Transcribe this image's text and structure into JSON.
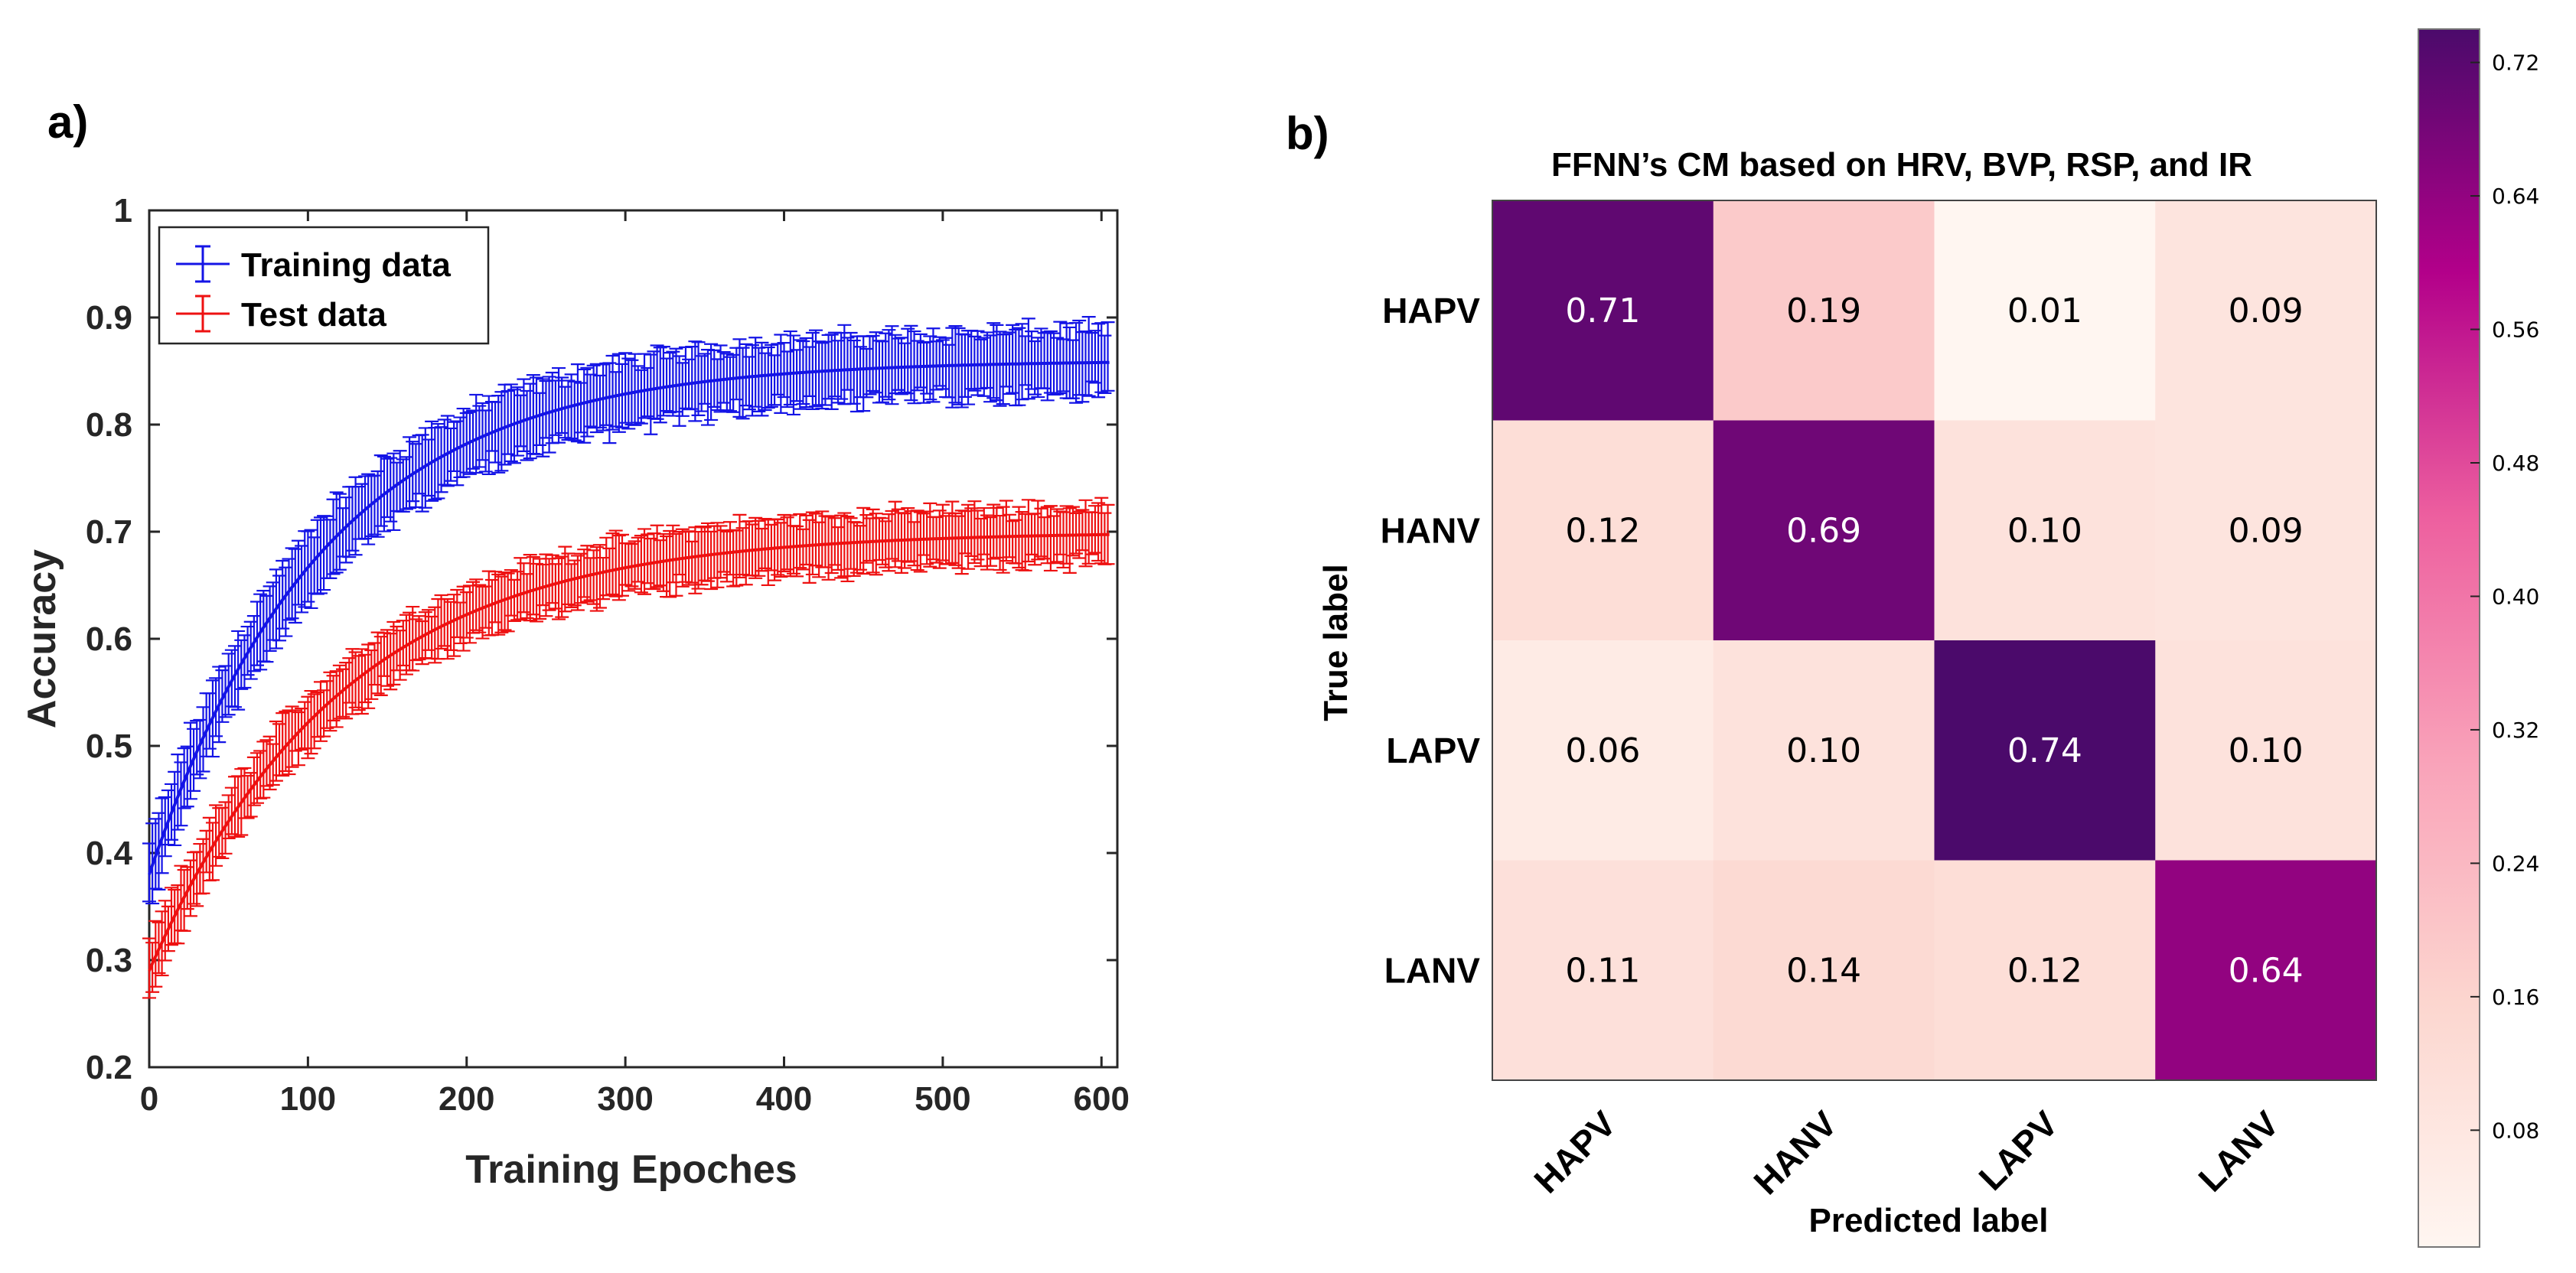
{
  "panels": {
    "a_label": "a)",
    "b_label": "b)"
  },
  "colors": {
    "training": "#1414e6",
    "test": "#ee1111",
    "axis": "#262626"
  },
  "chart_data": [
    {
      "type": "line",
      "title": "",
      "xlabel": "Training Epoches",
      "ylabel": "Accuracy",
      "xlim": [
        0,
        610
      ],
      "ylim": [
        0.2,
        1
      ],
      "xticks": [
        0,
        100,
        200,
        300,
        400,
        500,
        600
      ],
      "xtick_labels": [
        "0",
        "100",
        "200",
        "300",
        "400",
        "500",
        "600"
      ],
      "yticks": [
        0.2,
        0.3,
        0.4,
        0.5,
        0.6,
        0.7,
        0.8,
        0.9,
        1
      ],
      "ytick_labels": [
        "0.2",
        "0.3",
        "0.4",
        "0.5",
        "0.6",
        "0.7",
        "0.8",
        "0.9",
        "1"
      ],
      "legend": "top-left",
      "series": [
        {
          "name": "Training data",
          "color": "#1414e6",
          "start": 0.38,
          "plateau": 0.86,
          "tau": 110,
          "err": 0.03
        },
        {
          "name": "Test data",
          "color": "#ee1111",
          "start": 0.29,
          "plateau": 0.7,
          "tau": 120,
          "err": 0.025
        }
      ]
    },
    {
      "type": "heatmap",
      "title": "FFNN’s CM based on HRV, BVP, RSP, and IR",
      "xlabel": "Predicted label",
      "ylabel": "True label",
      "row_labels": [
        "HAPV",
        "HANV",
        "LAPV",
        "LANV"
      ],
      "col_labels": [
        "HAPV",
        "HANV",
        "LAPV",
        "LANV"
      ],
      "matrix": [
        [
          0.71,
          0.19,
          0.01,
          0.09
        ],
        [
          0.12,
          0.69,
          0.1,
          0.09
        ],
        [
          0.06,
          0.1,
          0.74,
          0.1
        ],
        [
          0.11,
          0.14,
          0.12,
          0.64
        ]
      ],
      "cell_labels": [
        [
          "0.71",
          "0.19",
          "0.01",
          "0.09"
        ],
        [
          "0.12",
          "0.69",
          "0.10",
          "0.09"
        ],
        [
          "0.06",
          "0.10",
          "0.74",
          "0.10"
        ],
        [
          "0.11",
          "0.14",
          "0.12",
          "0.64"
        ]
      ],
      "colorbar": {
        "min": 0.01,
        "max": 0.74,
        "ticks": [
          0.72,
          0.64,
          0.56,
          0.48,
          0.4,
          0.32,
          0.24,
          0.16,
          0.08
        ],
        "tick_labels": [
          "0.72",
          "0.64",
          "0.56",
          "0.48",
          "0.40",
          "0.32",
          "0.24",
          "0.16",
          "0.08"
        ]
      }
    }
  ]
}
